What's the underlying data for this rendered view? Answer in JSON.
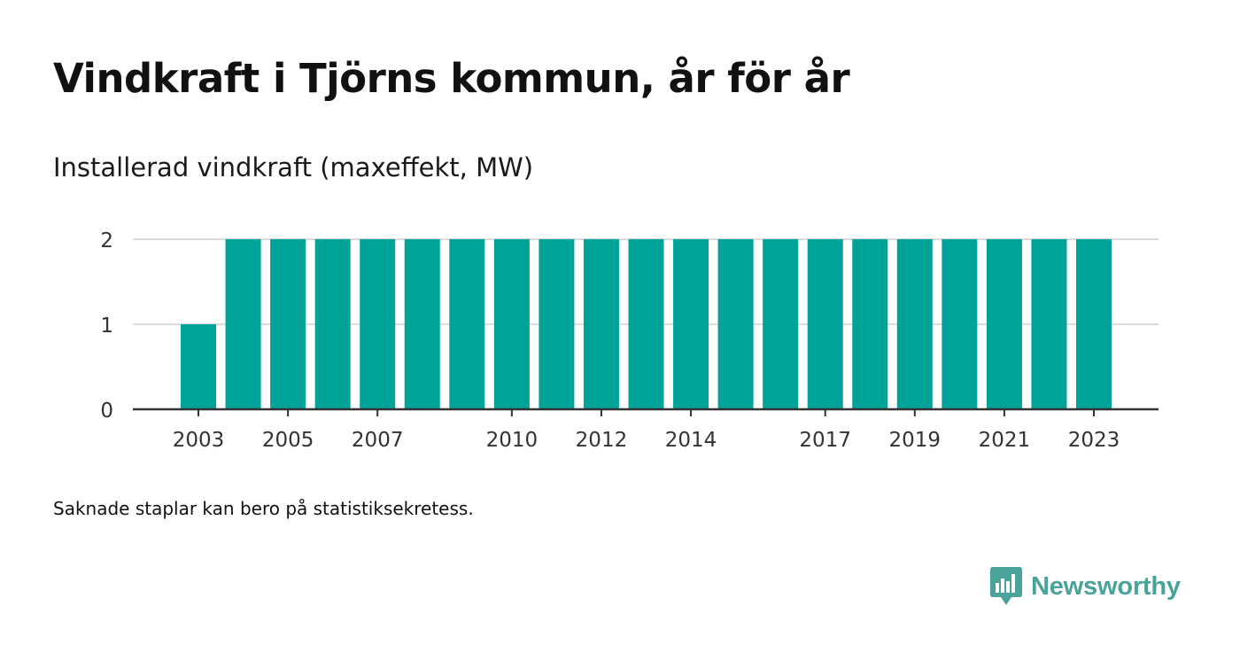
{
  "header": {
    "title": "Vindkraft i Tjörns kommun, år för år",
    "subtitle": "Installerad vindkraft (maxeffekt, MW)"
  },
  "footnote": "Saknade staplar kan bero på statistiksekretess.",
  "brand": {
    "name": "Newsworthy",
    "icon": "newsworthy-logo-icon"
  },
  "colors": {
    "bar": "#00a398",
    "grid": "#dddddd",
    "axis": "#333333",
    "brand": "#4aa39a"
  },
  "chart_data": {
    "type": "bar",
    "title": "Vindkraft i Tjörns kommun, år för år",
    "subtitle": "Installerad vindkraft (maxeffekt, MW)",
    "categories": [
      "2003",
      "2004",
      "2005",
      "2006",
      "2007",
      "2008",
      "2009",
      "2010",
      "2011",
      "2012",
      "2013",
      "2014",
      "2015",
      "2016",
      "2017",
      "2018",
      "2019",
      "2020",
      "2021",
      "2022",
      "2023"
    ],
    "values": [
      1,
      2,
      2,
      2,
      2,
      2,
      2,
      2,
      2,
      2,
      2,
      2,
      2,
      2,
      2,
      2,
      2,
      2,
      2,
      2,
      2
    ],
    "x_tick_labels": [
      "2003",
      "2005",
      "2007",
      "2010",
      "2012",
      "2014",
      "2017",
      "2019",
      "2021",
      "2023"
    ],
    "y_ticks": [
      0,
      1,
      2
    ],
    "ylim": [
      0,
      2
    ],
    "xlabel": "",
    "ylabel": "",
    "grid": true,
    "legend": "none"
  }
}
